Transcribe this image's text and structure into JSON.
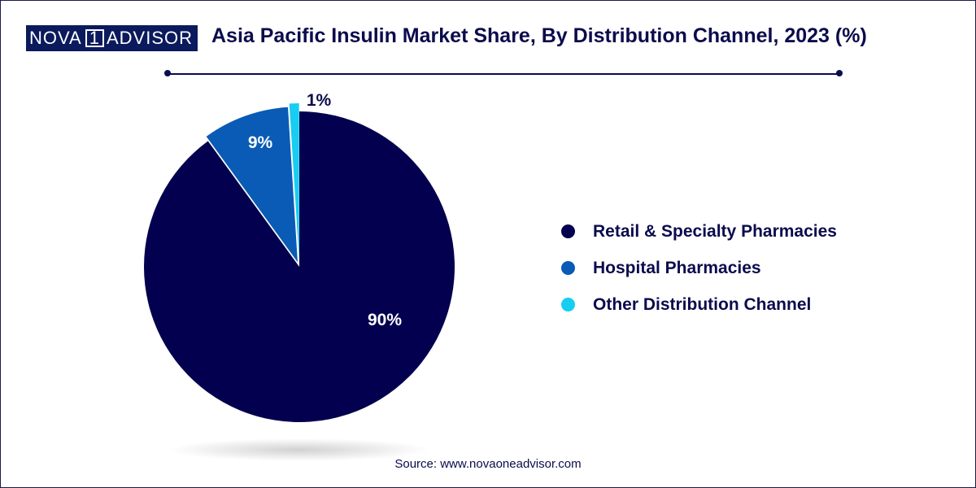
{
  "header": {
    "logo_left": "NOVA",
    "logo_mark": "1",
    "logo_right": "ADVISOR",
    "title": "Asia Pacific Insulin Market Share, By Distribution Channel, 2023 (%)"
  },
  "footer": {
    "source": "Source: www.novaoneadvisor.com"
  },
  "chart_data": {
    "type": "pie",
    "title": "Asia Pacific Insulin Market Share, By Distribution Channel, 2023 (%)",
    "categories": [
      "Retail & Specialty Pharmacies",
      "Hospital Pharmacies",
      "Other Distribution Channel"
    ],
    "values": [
      90,
      9,
      1
    ],
    "labels": [
      "90%",
      "9%",
      "1%"
    ],
    "colors": [
      "#03004f",
      "#0a5bb5",
      "#17cdf2"
    ],
    "legend_position": "right"
  }
}
